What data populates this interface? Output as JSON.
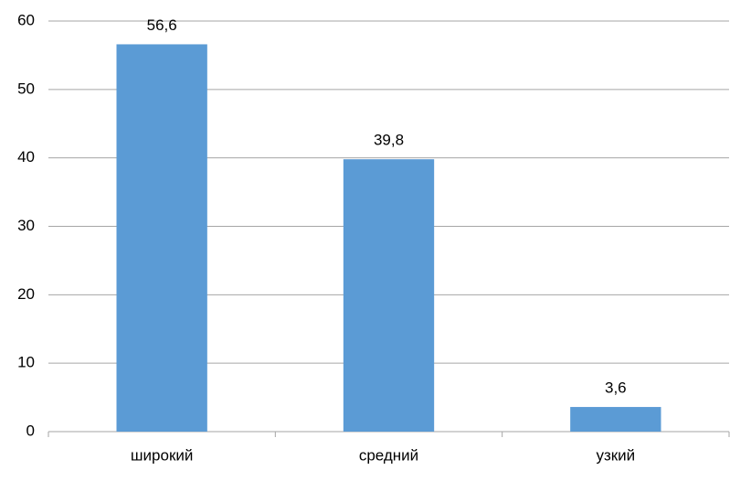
{
  "chart_data": {
    "type": "bar",
    "categories": [
      "широкий",
      "средний",
      "узкий"
    ],
    "values": [
      56.6,
      39.8,
      3.6
    ],
    "value_labels": [
      "56,6",
      "39,8",
      "3,6"
    ],
    "color": "#5b9bd5",
    "ylim": [
      0,
      60
    ],
    "yticks": [
      0,
      10,
      20,
      30,
      40,
      50,
      60
    ],
    "grid": true
  }
}
